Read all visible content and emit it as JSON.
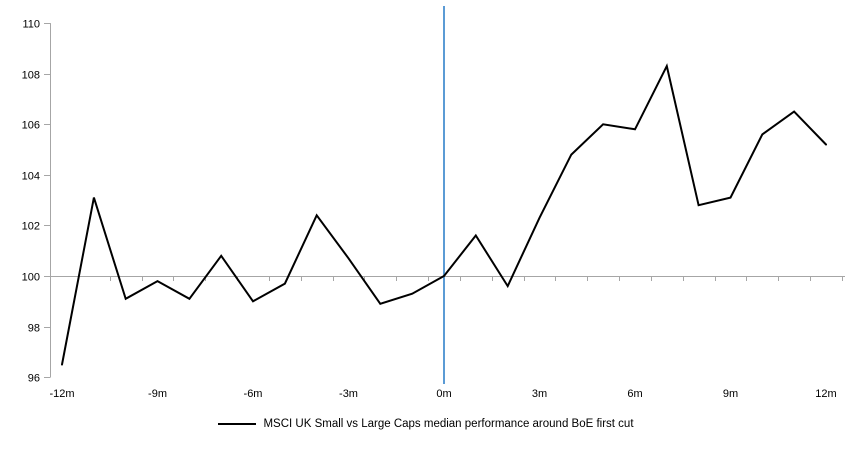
{
  "chart_data": {
    "type": "line",
    "title": "",
    "legend_position": "bottom",
    "grid": "baseline-only",
    "months": [
      -12,
      -11,
      -10,
      -9,
      -8,
      -7,
      -6,
      -5,
      -4,
      -3,
      -2,
      -1,
      0,
      1,
      2,
      3,
      4,
      5,
      6,
      7,
      8,
      9,
      10,
      11,
      12
    ],
    "series": [
      {
        "name": "MSCI UK Small vs Large Caps median performance around BoE first cut",
        "color": "#000000",
        "values": [
          96.5,
          103.1,
          99.1,
          99.8,
          99.1,
          100.8,
          99.0,
          99.7,
          102.4,
          100.7,
          98.9,
          99.3,
          100.0,
          101.6,
          99.6,
          102.3,
          104.8,
          106.0,
          105.8,
          108.3,
          102.8,
          103.1,
          105.6,
          106.5,
          105.2
        ]
      }
    ],
    "x_ticks": [
      {
        "month": -12,
        "label": "-12m"
      },
      {
        "month": -9,
        "label": "-9m"
      },
      {
        "month": -6,
        "label": "-6m"
      },
      {
        "month": -3,
        "label": "-3m"
      },
      {
        "month": 0,
        "label": "0m"
      },
      {
        "month": 3,
        "label": "3m"
      },
      {
        "month": 6,
        "label": "6m"
      },
      {
        "month": 9,
        "label": "9m"
      },
      {
        "month": 12,
        "label": "12m"
      }
    ],
    "y_ticks": [
      96,
      98,
      100,
      102,
      104,
      106,
      108,
      110
    ],
    "ylim": [
      96,
      110
    ],
    "baseline_value": 100,
    "event_line_month": 0,
    "colors": {
      "series": "#000000",
      "event_line": "#5b9bd5",
      "axis": "#a6a6a6",
      "text": "#000000"
    }
  }
}
